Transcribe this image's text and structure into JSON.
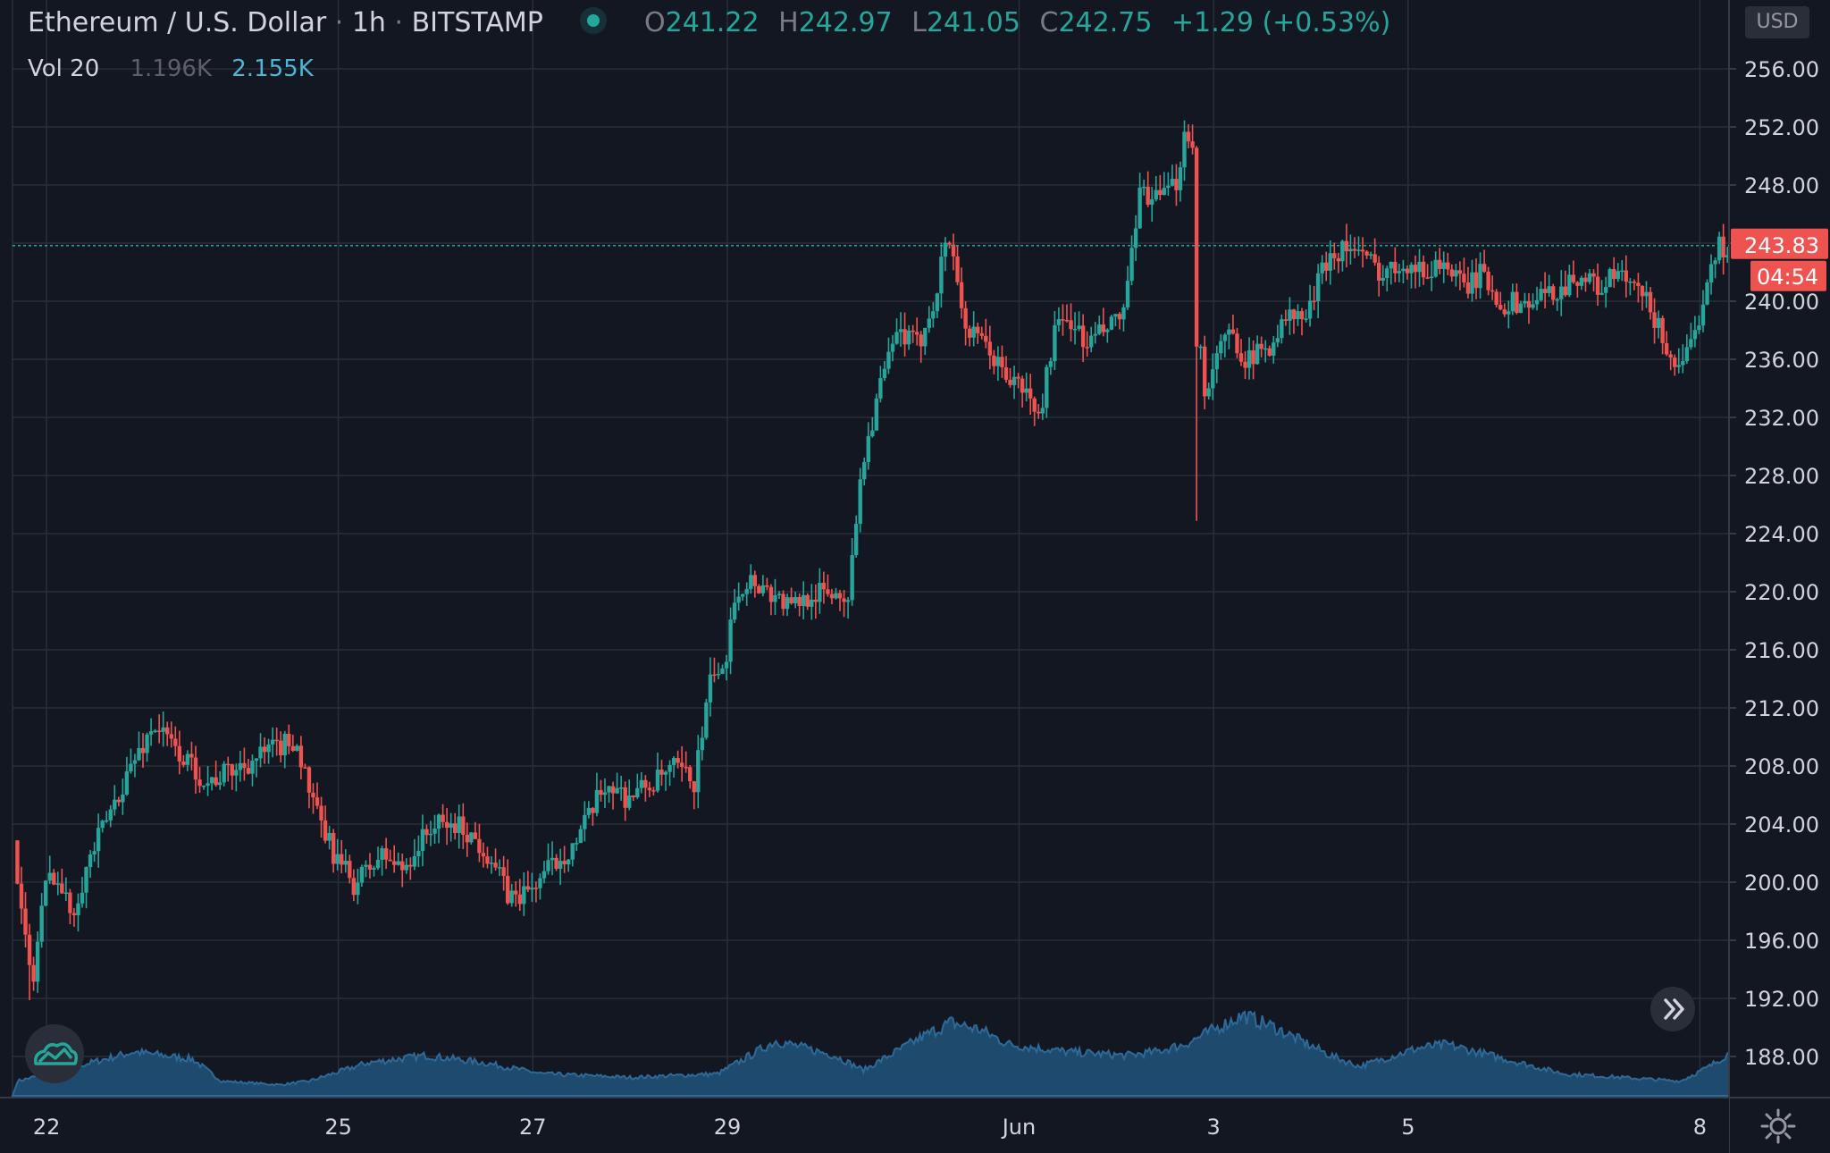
{
  "legend": {
    "symbol": "Ethereum / U.S. Dollar",
    "sep": "·",
    "interval": "1h",
    "exchange": "BITSTAMP",
    "o_label": "O",
    "o": "241.22",
    "h_label": "H",
    "h": "242.97",
    "l_label": "L",
    "l": "241.05",
    "c_label": "C",
    "c": "242.75",
    "change": "+1.29 (+0.53%)",
    "vol_label": "Vol 20",
    "vol_ma": "1.196K",
    "vol": "2.155K"
  },
  "currency": "USD",
  "forward_icon": "double-chevron-right-icon",
  "logo_icon": "tradingview-cloud-icon",
  "settings_icon": "gear-icon",
  "colors": {
    "background": "#131722",
    "grid": "#2a2e39",
    "up": "#26a69a",
    "down": "#ef5350",
    "volume": "#1e4a6e",
    "price_label": "#ef5350"
  },
  "chart_data": {
    "type": "candlestick",
    "interval": "1h",
    "ylim": [
      186,
      259
    ],
    "yticks": [
      188,
      192,
      196,
      200,
      204,
      208,
      212,
      216,
      220,
      224,
      228,
      232,
      236,
      240,
      244,
      248,
      252,
      256
    ],
    "ytick_labels": [
      "188.00",
      "192.00",
      "196.00",
      "200.00",
      "204.00",
      "208.00",
      "212.00",
      "216.00",
      "220.00",
      "224.00",
      "228.00",
      "232.00",
      "236.00",
      "240.00",
      "244.00",
      "248.00",
      "252.00",
      "256.00"
    ],
    "x_range": [
      -0.05,
      17.6
    ],
    "xticks": [
      {
        "x": 0.3,
        "label": "22"
      },
      {
        "x": 3.3,
        "label": "25"
      },
      {
        "x": 5.3,
        "label": "27"
      },
      {
        "x": 7.3,
        "label": "29"
      },
      {
        "x": 10.3,
        "label": "Jun"
      },
      {
        "x": 12.3,
        "label": "3"
      },
      {
        "x": 14.3,
        "label": "5"
      },
      {
        "x": 17.3,
        "label": "8"
      }
    ],
    "last_price": 243.83,
    "last_price_label": "243.83",
    "countdown": "04:54",
    "anchors": [
      [
        0,
        203
      ],
      [
        0.1,
        197
      ],
      [
        0.2,
        193
      ],
      [
        0.3,
        199
      ],
      [
        0.4,
        201
      ],
      [
        0.6,
        198
      ],
      [
        0.8,
        202
      ],
      [
        1.0,
        205
      ],
      [
        1.2,
        208
      ],
      [
        1.45,
        211
      ],
      [
        1.7,
        209
      ],
      [
        2.0,
        207
      ],
      [
        2.3,
        208
      ],
      [
        2.6,
        209
      ],
      [
        2.9,
        210
      ],
      [
        3.1,
        205
      ],
      [
        3.3,
        202
      ],
      [
        3.5,
        200
      ],
      [
        3.8,
        202
      ],
      [
        4.0,
        201
      ],
      [
        4.3,
        204
      ],
      [
        4.6,
        204
      ],
      [
        4.9,
        202
      ],
      [
        5.1,
        199
      ],
      [
        5.3,
        199.5
      ],
      [
        5.5,
        201
      ],
      [
        5.8,
        203
      ],
      [
        6.1,
        207
      ],
      [
        6.3,
        206
      ],
      [
        6.6,
        207
      ],
      [
        6.8,
        208
      ],
      [
        7.0,
        207
      ],
      [
        7.1,
        211
      ],
      [
        7.2,
        215
      ],
      [
        7.3,
        214
      ],
      [
        7.4,
        220
      ],
      [
        7.6,
        221
      ],
      [
        7.8,
        220
      ],
      [
        8.0,
        219
      ],
      [
        8.2,
        220
      ],
      [
        8.4,
        220
      ],
      [
        8.6,
        220
      ],
      [
        8.7,
        228
      ],
      [
        8.9,
        234
      ],
      [
        9.1,
        238
      ],
      [
        9.3,
        237
      ],
      [
        9.5,
        241
      ],
      [
        9.6,
        245
      ],
      [
        9.7,
        242
      ],
      [
        9.8,
        238
      ],
      [
        10.0,
        237
      ],
      [
        10.2,
        235
      ],
      [
        10.4,
        234
      ],
      [
        10.55,
        232
      ],
      [
        10.7,
        238
      ],
      [
        10.9,
        239
      ],
      [
        11.0,
        237
      ],
      [
        11.2,
        238
      ],
      [
        11.4,
        239
      ],
      [
        11.5,
        243
      ],
      [
        11.6,
        248
      ],
      [
        11.75,
        247
      ],
      [
        11.95,
        248
      ],
      [
        12.05,
        252
      ],
      [
        12.15,
        251
      ],
      [
        12.17,
        232
      ],
      [
        12.3,
        235
      ],
      [
        12.5,
        238
      ],
      [
        12.7,
        236
      ],
      [
        12.9,
        237
      ],
      [
        13.1,
        239
      ],
      [
        13.3,
        239
      ],
      [
        13.5,
        243
      ],
      [
        13.7,
        244
      ],
      [
        13.9,
        243
      ],
      [
        14.1,
        242
      ],
      [
        14.3,
        243
      ],
      [
        14.5,
        242
      ],
      [
        14.7,
        243
      ],
      [
        14.9,
        241
      ],
      [
        15.1,
        242
      ],
      [
        15.3,
        240
      ],
      [
        15.6,
        240
      ],
      [
        15.9,
        241
      ],
      [
        16.1,
        242
      ],
      [
        16.3,
        241
      ],
      [
        16.5,
        242
      ],
      [
        16.8,
        240
      ],
      [
        17.0,
        237
      ],
      [
        17.15,
        235
      ],
      [
        17.3,
        238
      ],
      [
        17.45,
        243
      ],
      [
        17.55,
        244
      ],
      [
        17.62,
        243.8
      ]
    ],
    "volume_anchors": [
      [
        0,
        0.2
      ],
      [
        0.6,
        0.4
      ],
      [
        1.2,
        0.6
      ],
      [
        1.8,
        0.5
      ],
      [
        2.1,
        0.2
      ],
      [
        2.7,
        0.15
      ],
      [
        3.0,
        0.2
      ],
      [
        3.6,
        0.45
      ],
      [
        4.2,
        0.55
      ],
      [
        4.8,
        0.45
      ],
      [
        5.4,
        0.3
      ],
      [
        6.3,
        0.25
      ],
      [
        7.2,
        0.3
      ],
      [
        7.8,
        0.75
      ],
      [
        8.4,
        0.55
      ],
      [
        8.7,
        0.35
      ],
      [
        9.3,
        0.8
      ],
      [
        9.6,
        1.0
      ],
      [
        9.9,
        0.9
      ],
      [
        10.2,
        0.7
      ],
      [
        10.8,
        0.6
      ],
      [
        11.4,
        0.55
      ],
      [
        11.7,
        0.6
      ],
      [
        12.0,
        0.7
      ],
      [
        12.3,
        0.9
      ],
      [
        12.6,
        1.1
      ],
      [
        12.9,
        0.95
      ],
      [
        13.5,
        0.55
      ],
      [
        13.8,
        0.4
      ],
      [
        14.4,
        0.65
      ],
      [
        14.7,
        0.7
      ],
      [
        15.3,
        0.5
      ],
      [
        15.9,
        0.3
      ],
      [
        16.5,
        0.25
      ],
      [
        17.1,
        0.2
      ],
      [
        17.4,
        0.4
      ],
      [
        17.62,
        0.6
      ]
    ]
  }
}
